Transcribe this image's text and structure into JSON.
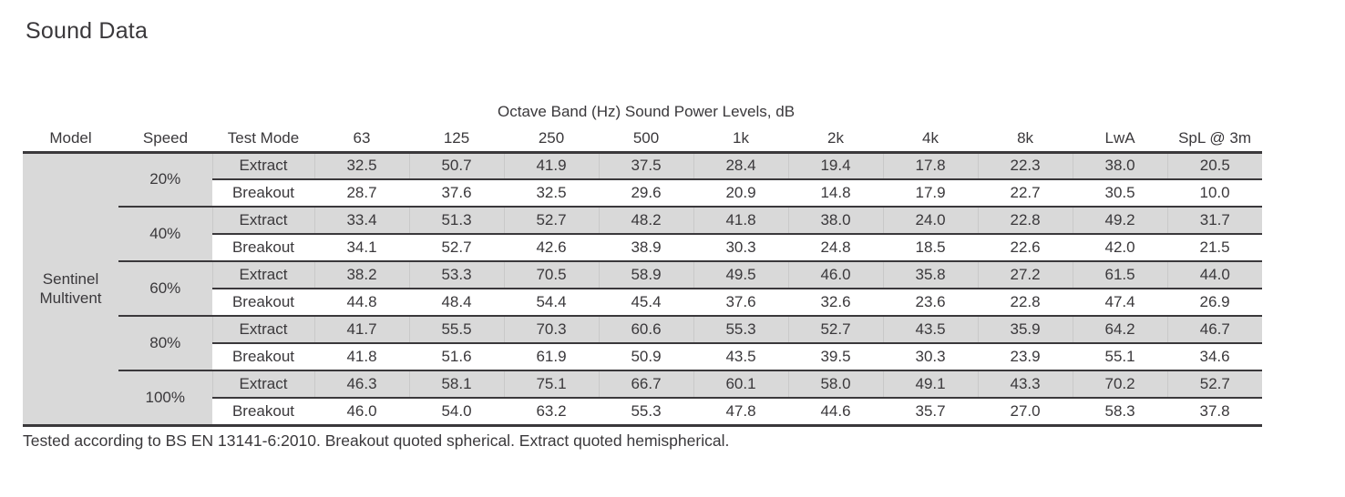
{
  "page_title": "Sound Data",
  "table": {
    "band_header": "Octave Band (Hz) Sound Power Levels, dB",
    "columns": [
      "Model",
      "Speed",
      "Test Mode",
      "63",
      "125",
      "250",
      "500",
      "1k",
      "2k",
      "4k",
      "8k",
      "LwA",
      "SpL @ 3m"
    ],
    "model": "Sentinel Multivent",
    "groups": [
      {
        "speed": "20%",
        "rows": [
          {
            "mode": "Extract",
            "values": [
              "32.5",
              "50.7",
              "41.9",
              "37.5",
              "28.4",
              "19.4",
              "17.8",
              "22.3",
              "38.0",
              "20.5"
            ]
          },
          {
            "mode": "Breakout",
            "values": [
              "28.7",
              "37.6",
              "32.5",
              "29.6",
              "20.9",
              "14.8",
              "17.9",
              "22.7",
              "30.5",
              "10.0"
            ]
          }
        ]
      },
      {
        "speed": "40%",
        "rows": [
          {
            "mode": "Extract",
            "values": [
              "33.4",
              "51.3",
              "52.7",
              "48.2",
              "41.8",
              "38.0",
              "24.0",
              "22.8",
              "49.2",
              "31.7"
            ]
          },
          {
            "mode": "Breakout",
            "values": [
              "34.1",
              "52.7",
              "42.6",
              "38.9",
              "30.3",
              "24.8",
              "18.5",
              "22.6",
              "42.0",
              "21.5"
            ]
          }
        ]
      },
      {
        "speed": "60%",
        "rows": [
          {
            "mode": "Extract",
            "values": [
              "38.2",
              "53.3",
              "70.5",
              "58.9",
              "49.5",
              "46.0",
              "35.8",
              "27.2",
              "61.5",
              "44.0"
            ]
          },
          {
            "mode": "Breakout",
            "values": [
              "44.8",
              "48.4",
              "54.4",
              "45.4",
              "37.6",
              "32.6",
              "23.6",
              "22.8",
              "47.4",
              "26.9"
            ]
          }
        ]
      },
      {
        "speed": "80%",
        "rows": [
          {
            "mode": "Extract",
            "values": [
              "41.7",
              "55.5",
              "70.3",
              "60.6",
              "55.3",
              "52.7",
              "43.5",
              "35.9",
              "64.2",
              "46.7"
            ]
          },
          {
            "mode": "Breakout",
            "values": [
              "41.8",
              "51.6",
              "61.9",
              "50.9",
              "43.5",
              "39.5",
              "30.3",
              "23.9",
              "55.1",
              "34.6"
            ]
          }
        ]
      },
      {
        "speed": "100%",
        "rows": [
          {
            "mode": "Extract",
            "values": [
              "46.3",
              "58.1",
              "75.1",
              "66.7",
              "60.1",
              "58.0",
              "49.1",
              "43.3",
              "70.2",
              "52.7"
            ]
          },
          {
            "mode": "Breakout",
            "values": [
              "46.0",
              "54.0",
              "63.2",
              "55.3",
              "47.8",
              "44.6",
              "35.7",
              "27.0",
              "58.3",
              "37.8"
            ]
          }
        ]
      }
    ]
  },
  "footnote": "Tested according to BS EN 13141-6:2010. Breakout quoted spherical. Extract quoted hemispherical.",
  "colors": {
    "row_shade": "#d9d9d9",
    "text": "#3a383b",
    "rule": "#3a383b"
  }
}
